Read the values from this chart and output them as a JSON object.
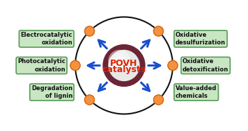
{
  "title_line1": "POVH",
  "title_line2": "catalysts",
  "title_color": "#dd2200",
  "bg_color": "#ffffff",
  "outer_circle_color": "#111111",
  "inner_ring_color": "#6b2535",
  "inner_fill_color": "#e8e8e8",
  "dot_color": "#f5923e",
  "dot_edge_color": "#d06818",
  "arrow_color": "#1a4fcc",
  "box_facecolor": "#c8e6c2",
  "box_edgecolor": "#5a9a5a",
  "labels": [
    "Electrocatalytic\noxidation",
    "Oxidative\ndesulfurization",
    "Photocatalytic\noxidation",
    "Oxidative\ndetoxification",
    "Degradation\nof lignin",
    "Value-added\nchemicals"
  ],
  "dot_angles_deg": [
    135,
    45,
    180,
    0,
    225,
    315
  ],
  "arrow_angles_deg": [
    135,
    45,
    180,
    0,
    225,
    315
  ],
  "figsize": [
    3.56,
    1.89
  ],
  "dpi": 100
}
